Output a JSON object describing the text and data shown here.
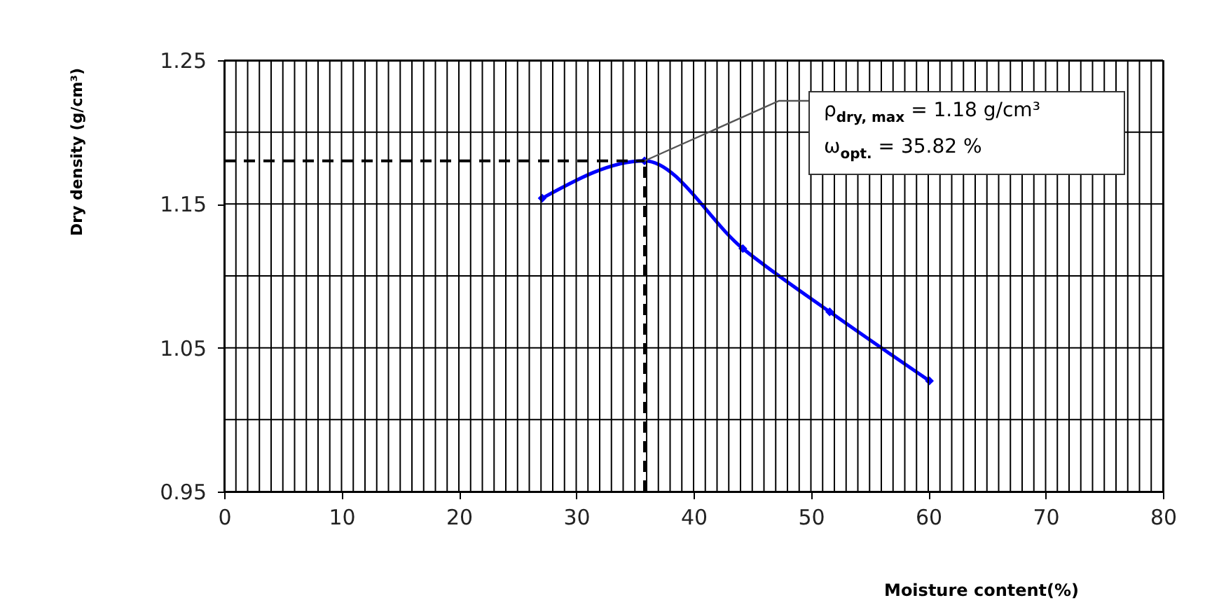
{
  "chart_data": {
    "type": "line",
    "xlabel": "Moisture content(%)",
    "ylabel": "Dry density (g/cm³)",
    "x": [
      27.1,
      35.82,
      44.2,
      51.6,
      60.1
    ],
    "series": [
      {
        "color": "#0000ff",
        "values": [
          1.154,
          1.18,
          1.119,
          1.075,
          1.027
        ]
      }
    ],
    "marker": "diamond",
    "line_style": "solid",
    "grid": true,
    "xlim": [
      0,
      80
    ],
    "ylim": [
      0.95,
      1.25
    ],
    "xticks": [
      0,
      {
        "value": 1,
        "label": null
      },
      {
        "value": 2,
        "label": null
      },
      {
        "value": 3,
        "label": null
      },
      {
        "value": 4,
        "label": null
      },
      {
        "value": 5,
        "label": null
      },
      {
        "value": 6,
        "label": null
      },
      {
        "value": 7,
        "label": null
      },
      {
        "value": 8,
        "label": null
      },
      {
        "value": 9,
        "label": null
      },
      10,
      {
        "value": 11,
        "label": null
      },
      {
        "value": 12,
        "label": null
      },
      {
        "value": 13,
        "label": null
      },
      {
        "value": 14,
        "label": null
      },
      {
        "value": 15,
        "label": null
      },
      {
        "value": 16,
        "label": null
      },
      {
        "value": 17,
        "label": null
      },
      {
        "value": 18,
        "label": null
      },
      {
        "value": 19,
        "label": null
      },
      20,
      {
        "value": 21,
        "label": null
      },
      {
        "value": 22,
        "label": null
      },
      {
        "value": 23,
        "label": null
      },
      {
        "value": 24,
        "label": null
      },
      {
        "value": 25,
        "label": null
      },
      {
        "value": 26,
        "label": null
      },
      {
        "value": 27,
        "label": null
      },
      {
        "value": 28,
        "label": null
      },
      {
        "value": 29,
        "label": null
      },
      30,
      {
        "value": 31,
        "label": null
      },
      {
        "value": 32,
        "label": null
      },
      {
        "value": 33,
        "label": null
      },
      {
        "value": 34,
        "label": null
      },
      {
        "value": 35,
        "label": null
      },
      {
        "value": 36,
        "label": null
      },
      {
        "value": 37,
        "label": null
      },
      {
        "value": 38,
        "label": null
      },
      {
        "value": 39,
        "label": null
      },
      40,
      {
        "value": 41,
        "label": null
      },
      {
        "value": 42,
        "label": null
      },
      {
        "value": 43,
        "label": null
      },
      {
        "value": 44,
        "label": null
      },
      {
        "value": 45,
        "label": null
      },
      {
        "value": 46,
        "label": null
      },
      {
        "value": 47,
        "label": null
      },
      {
        "value": 48,
        "label": null
      },
      {
        "value": 49,
        "label": null
      },
      50,
      {
        "value": 51,
        "label": null
      },
      {
        "value": 52,
        "label": null
      },
      {
        "value": 53,
        "label": null
      },
      {
        "value": 54,
        "label": null
      },
      {
        "value": 55,
        "label": null
      },
      {
        "value": 56,
        "label": null
      },
      {
        "value": 57,
        "label": null
      },
      {
        "value": 58,
        "label": null
      },
      {
        "value": 59,
        "label": null
      },
      60,
      {
        "value": 61,
        "label": null
      },
      {
        "value": 62,
        "label": null
      },
      {
        "value": 63,
        "label": null
      },
      {
        "value": 64,
        "label": null
      },
      {
        "value": 65,
        "label": null
      },
      {
        "value": 66,
        "label": null
      },
      {
        "value": 67,
        "label": null
      },
      {
        "value": 68,
        "label": null
      },
      {
        "value": 69,
        "label": null
      },
      70,
      {
        "value": 71,
        "label": null
      },
      {
        "value": 72,
        "label": null
      },
      {
        "value": 73,
        "label": null
      },
      {
        "value": 74,
        "label": null
      },
      {
        "value": 75,
        "label": null
      },
      {
        "value": 76,
        "label": null
      },
      {
        "value": 77,
        "label": null
      },
      {
        "value": 78,
        "label": null
      },
      {
        "value": 79,
        "label": null
      },
      80
    ],
    "yticks": [
      0.95,
      {
        "value": 1.0,
        "label": null
      },
      1.05,
      {
        "value": 1.1,
        "label": null
      },
      1.15,
      {
        "value": 1.2,
        "label": null
      },
      1.25
    ],
    "ref_lines": [
      {
        "axis": "y",
        "value": 1.18,
        "line_style": "dashed",
        "color": "#000000"
      },
      {
        "axis": "x",
        "value": 35.82,
        "line_style": "dashed",
        "color": "#000000"
      }
    ],
    "annotations": [
      {
        "text": "ρ$_{dry, max}$ = 1.18 g/cm³",
        "x": 35.82,
        "y": 1.18
      },
      "ω$_{opt.}$ = 35.82 %"
    ]
  }
}
